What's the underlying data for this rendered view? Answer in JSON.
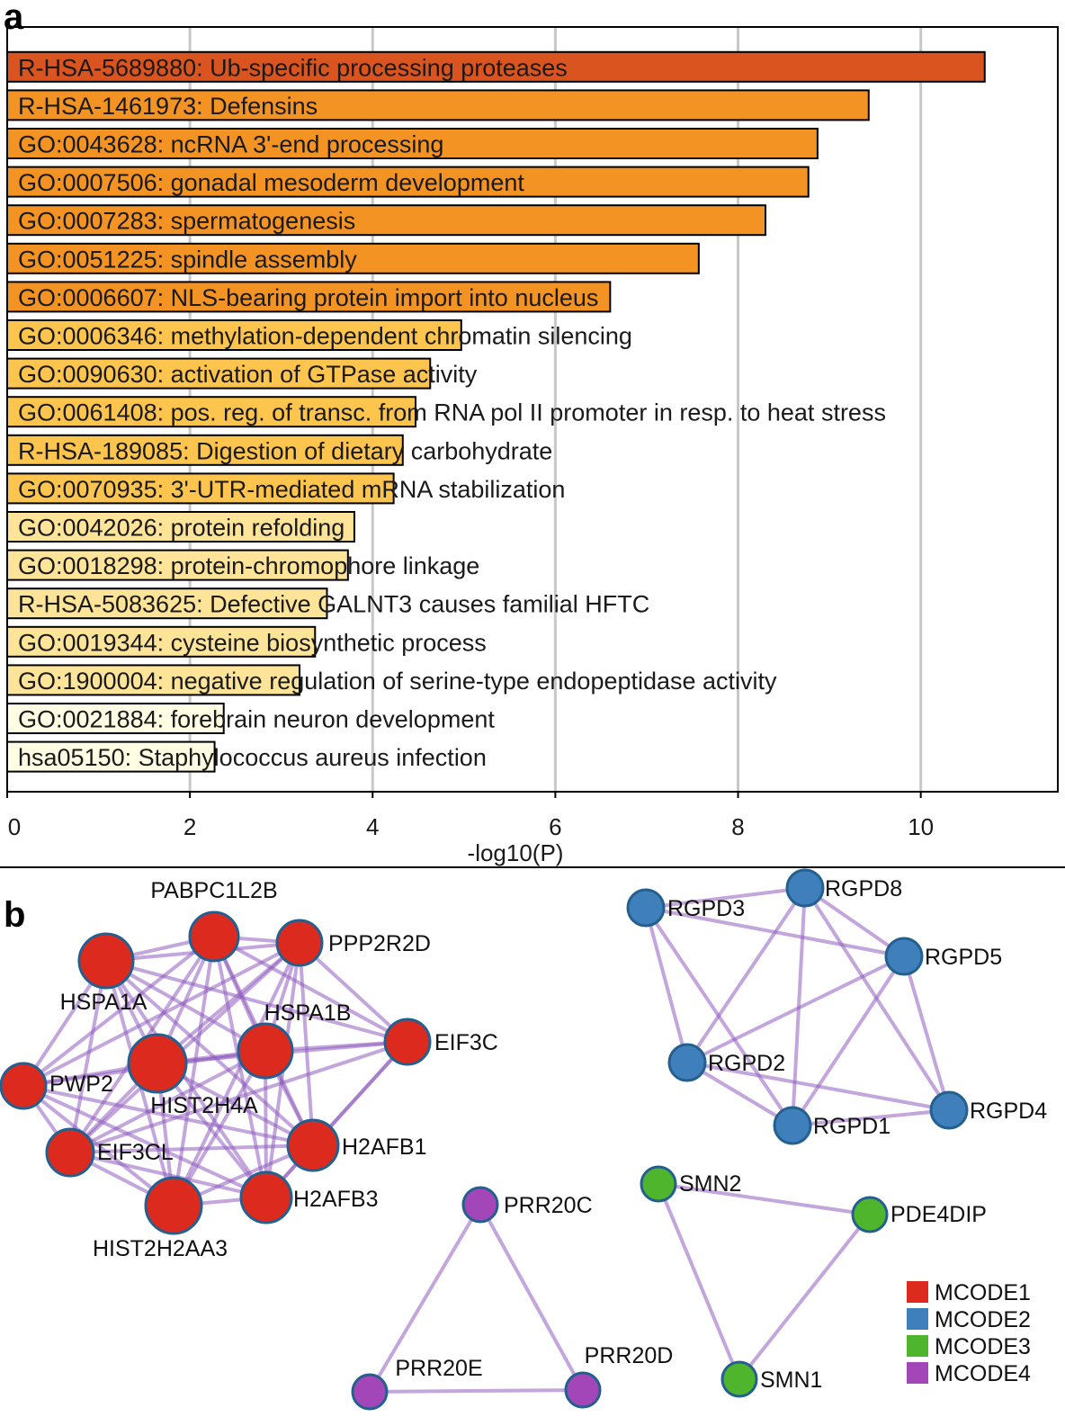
{
  "panel_labels": {
    "a": "a",
    "b": "b"
  },
  "chart_data": [
    {
      "type": "bar",
      "orientation": "horizontal",
      "categories": [
        "R-HSA-5689880: Ub-specific processing proteases",
        "R-HSA-1461973: Defensins",
        "GO:0043628: ncRNA 3'-end processing",
        "GO:0007506: gonadal mesoderm development",
        "GO:0007283: spermatogenesis",
        "GO:0051225: spindle assembly",
        "GO:0006607: NLS-bearing protein import into nucleus",
        "GO:0006346: methylation-dependent chromatin silencing",
        "GO:0090630: activation of GTPase activity",
        "GO:0061408: pos. reg. of transc. from RNA pol II promoter in resp. to heat stress",
        "R-HSA-189085: Digestion of dietary carbohydrate",
        "GO:0070935: 3'-UTR-mediated mRNA stabilization",
        "GO:0042026: protein refolding",
        "GO:0018298: protein-chromophore linkage",
        "R-HSA-5083625: Defective GALNT3 causes familial HFTC",
        "GO:0019344: cysteine biosynthetic process",
        "GO:1900004: negative regulation of serine-type endopeptidase activity",
        "GO:0021884: forebrain neuron development",
        "hsa05150: Staphylococcus aureus infection"
      ],
      "values": [
        10.7,
        9.43,
        8.87,
        8.77,
        8.3,
        7.57,
        6.6,
        4.97,
        4.63,
        4.47,
        4.33,
        4.23,
        3.8,
        3.73,
        3.5,
        3.37,
        3.2,
        2.37,
        2.27
      ],
      "bar_colors": [
        "#d9541e",
        "#f39324",
        "#f39324",
        "#f39324",
        "#f39324",
        "#f39324",
        "#f39324",
        "#fdc54e",
        "#fdc54e",
        "#fdc54e",
        "#fdc54e",
        "#fdc54e",
        "#fde499",
        "#fde499",
        "#fde499",
        "#fde499",
        "#fde499",
        "#fffde3",
        "#fffde3"
      ],
      "xlabel": "-log10(P)",
      "ylabel": "",
      "xlim": [
        0,
        11.5
      ],
      "xticks": [
        0,
        2,
        4,
        6,
        8,
        10
      ],
      "xtick_labels": [
        "0",
        "2",
        "4",
        "6",
        "8",
        "10"
      ],
      "grid": "vertical",
      "legend": "none"
    },
    {
      "type": "network",
      "clusters": [
        {
          "name": "MCODE1",
          "color": "#dd2a1e",
          "nodes": [
            "PABPC1L2B",
            "HSPA1A",
            "PPP2R2D",
            "HSPA1B",
            "EIF3C",
            "PWP2",
            "HIST2H4A",
            "EIF3CL",
            "H2AFB1",
            "HIST2H2AA3",
            "H2AFB3"
          ]
        },
        {
          "name": "MCODE2",
          "color": "#3f7fbb",
          "nodes": [
            "RGPD3",
            "RGPD8",
            "RGPD5",
            "RGPD2",
            "RGPD1",
            "RGPD4"
          ]
        },
        {
          "name": "MCODE3",
          "color": "#4fb52c",
          "nodes": [
            "SMN2",
            "PDE4DIP",
            "SMN1"
          ]
        },
        {
          "name": "MCODE4",
          "color": "#a346b8",
          "nodes": [
            "PRR20C",
            "PRR20E",
            "PRR20D"
          ]
        }
      ],
      "edges": [
        [
          "HSPA1A",
          "PABPC1L2B"
        ],
        [
          "HSPA1A",
          "PPP2R2D"
        ],
        [
          "HSPA1A",
          "HSPA1B"
        ],
        [
          "HSPA1A",
          "PWP2"
        ],
        [
          "HSPA1A",
          "HIST2H4A"
        ],
        [
          "HSPA1A",
          "EIF3CL"
        ],
        [
          "HSPA1A",
          "H2AFB1"
        ],
        [
          "HSPA1A",
          "HIST2H2AA3"
        ],
        [
          "HSPA1A",
          "H2AFB3"
        ],
        [
          "HSPA1A",
          "EIF3C"
        ],
        [
          "PABPC1L2B",
          "PPP2R2D"
        ],
        [
          "PABPC1L2B",
          "HSPA1B"
        ],
        [
          "PABPC1L2B",
          "HIST2H4A"
        ],
        [
          "PABPC1L2B",
          "PWP2"
        ],
        [
          "PABPC1L2B",
          "EIF3CL"
        ],
        [
          "PABPC1L2B",
          "H2AFB1"
        ],
        [
          "PABPC1L2B",
          "HIST2H2AA3"
        ],
        [
          "PABPC1L2B",
          "H2AFB3"
        ],
        [
          "PABPC1L2B",
          "EIF3C"
        ],
        [
          "PPP2R2D",
          "HSPA1B"
        ],
        [
          "PPP2R2D",
          "HIST2H4A"
        ],
        [
          "PPP2R2D",
          "EIF3C"
        ],
        [
          "PPP2R2D",
          "EIF3CL"
        ],
        [
          "PPP2R2D",
          "H2AFB1"
        ],
        [
          "PPP2R2D",
          "HIST2H2AA3"
        ],
        [
          "PPP2R2D",
          "H2AFB3"
        ],
        [
          "PPP2R2D",
          "PWP2"
        ],
        [
          "HSPA1B",
          "EIF3C"
        ],
        [
          "HSPA1B",
          "HIST2H4A"
        ],
        [
          "HSPA1B",
          "PWP2"
        ],
        [
          "HSPA1B",
          "EIF3CL"
        ],
        [
          "HSPA1B",
          "H2AFB1"
        ],
        [
          "HSPA1B",
          "HIST2H2AA3"
        ],
        [
          "HSPA1B",
          "H2AFB3"
        ],
        [
          "EIF3C",
          "HIST2H4A"
        ],
        [
          "EIF3C",
          "H2AFB1"
        ],
        [
          "EIF3C",
          "H2AFB3"
        ],
        [
          "EIF3C",
          "EIF3CL"
        ],
        [
          "PWP2",
          "HIST2H4A"
        ],
        [
          "PWP2",
          "EIF3CL"
        ],
        [
          "PWP2",
          "HIST2H2AA3"
        ],
        [
          "PWP2",
          "H2AFB1"
        ],
        [
          "PWP2",
          "H2AFB3"
        ],
        [
          "HIST2H4A",
          "EIF3CL"
        ],
        [
          "HIST2H4A",
          "H2AFB1"
        ],
        [
          "HIST2H4A",
          "HIST2H2AA3"
        ],
        [
          "HIST2H4A",
          "H2AFB3"
        ],
        [
          "EIF3CL",
          "HIST2H2AA3"
        ],
        [
          "EIF3CL",
          "H2AFB1"
        ],
        [
          "EIF3CL",
          "H2AFB3"
        ],
        [
          "H2AFB1",
          "HIST2H2AA3"
        ],
        [
          "H2AFB1",
          "H2AFB3"
        ],
        [
          "HIST2H2AA3",
          "H2AFB3"
        ],
        [
          "RGPD3",
          "RGPD8"
        ],
        [
          "RGPD3",
          "RGPD5"
        ],
        [
          "RGPD3",
          "RGPD2"
        ],
        [
          "RGPD3",
          "RGPD1"
        ],
        [
          "RGPD8",
          "RGPD5"
        ],
        [
          "RGPD8",
          "RGPD2"
        ],
        [
          "RGPD8",
          "RGPD1"
        ],
        [
          "RGPD8",
          "RGPD4"
        ],
        [
          "RGPD5",
          "RGPD2"
        ],
        [
          "RGPD5",
          "RGPD1"
        ],
        [
          "RGPD5",
          "RGPD4"
        ],
        [
          "RGPD2",
          "RGPD1"
        ],
        [
          "RGPD2",
          "RGPD4"
        ],
        [
          "RGPD1",
          "RGPD4"
        ],
        [
          "SMN2",
          "PDE4DIP"
        ],
        [
          "SMN2",
          "SMN1"
        ],
        [
          "PDE4DIP",
          "SMN1"
        ],
        [
          "PRR20C",
          "PRR20E"
        ],
        [
          "PRR20C",
          "PRR20D"
        ],
        [
          "PRR20E",
          "PRR20D"
        ]
      ],
      "legend": "bottom-right"
    }
  ]
}
